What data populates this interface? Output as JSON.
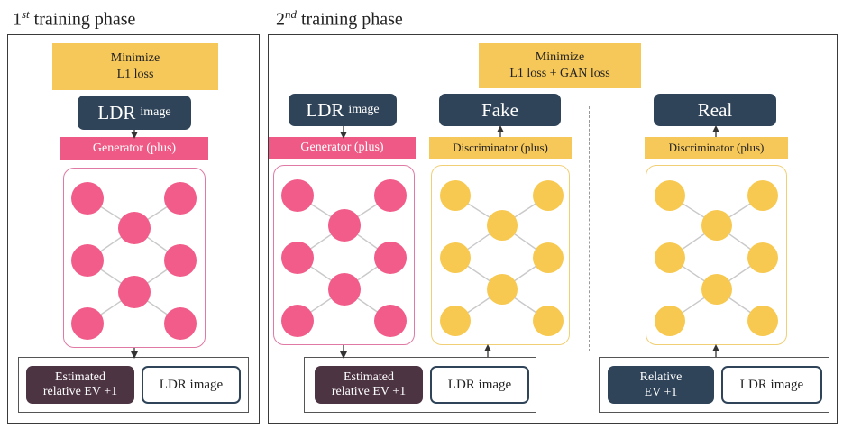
{
  "phase1": {
    "title_num": "1",
    "title_sup": "st",
    "title_rest": " training phase",
    "minimize_line1": "Minimize",
    "minimize_line2": "L1 loss",
    "input_main": "LDR",
    "input_sub": "image",
    "generator_label": "Generator (plus)",
    "estimated_line1": "Estimated",
    "estimated_line2": "relative EV +1",
    "ldr_image_label": "LDR image"
  },
  "phase2": {
    "title_num": "2",
    "title_sup": "nd",
    "title_rest": " training phase",
    "minimize_line1": "Minimize",
    "minimize_line2": "L1 loss + GAN loss",
    "input_main": "LDR",
    "input_sub": "image",
    "generator_label": "Generator (plus)",
    "fake_label": "Fake",
    "real_label": "Real",
    "discriminator_label": "Discriminator (plus)",
    "discriminator_label_2": "Discriminator (plus)",
    "estimated_line1": "Estimated",
    "estimated_line2": "relative EV +1",
    "ldr_image_label": "LDR image",
    "relative_line1": "Relative",
    "relative_line2": "EV +1",
    "ldr_image_label_2": "LDR image"
  },
  "colors": {
    "generator_node": "#f25c8a",
    "discriminator_node": "#f7c951",
    "dark_box": "#2f4459",
    "estimated_box": "#4d3443",
    "minimize_box": "#f6c85a",
    "generator_label": "#ee5a85"
  }
}
